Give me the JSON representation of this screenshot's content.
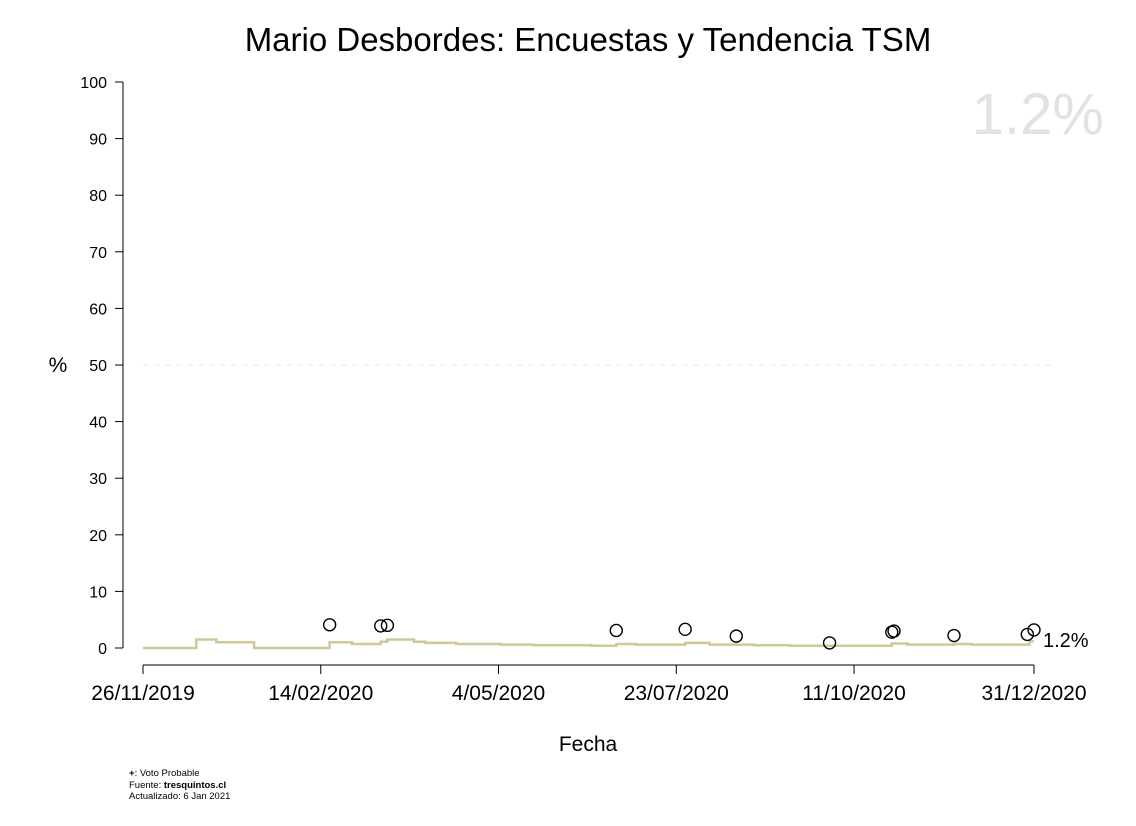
{
  "chart_data": {
    "type": "line",
    "title": "Mario Desbordes: Encuestas y Tendencia TSM",
    "xlabel": "Fecha",
    "ylabel": "%",
    "ylim": [
      0,
      100
    ],
    "yticks": [
      0,
      10,
      20,
      30,
      40,
      50,
      60,
      70,
      80,
      90,
      100
    ],
    "xlim": [
      "2019-11-26",
      "2020-12-31"
    ],
    "xticks": [
      {
        "date": "2019-11-26",
        "label": "26/11/2019"
      },
      {
        "date": "2020-02-14",
        "label": "14/02/2020"
      },
      {
        "date": "2020-05-04",
        "label": "4/05/2020"
      },
      {
        "date": "2020-07-23",
        "label": "23/07/2020"
      },
      {
        "date": "2020-10-11",
        "label": "11/10/2020"
      },
      {
        "date": "2020-12-31",
        "label": "31/12/2020"
      }
    ],
    "reference_line": {
      "y": 50,
      "style": "dashed",
      "color": "#e8e8e8"
    },
    "series": [
      {
        "type": "scatter",
        "marker": "open-circle",
        "color": "#000000",
        "points": [
          {
            "x": "2020-02-18",
            "y": 4.1
          },
          {
            "x": "2020-03-12",
            "y": 3.9
          },
          {
            "x": "2020-03-15",
            "y": 4.0
          },
          {
            "x": "2020-06-26",
            "y": 3.1
          },
          {
            "x": "2020-07-27",
            "y": 3.3
          },
          {
            "x": "2020-08-19",
            "y": 2.1
          },
          {
            "x": "2020-09-30",
            "y": 0.9
          },
          {
            "x": "2020-10-28",
            "y": 2.8
          },
          {
            "x": "2020-10-29",
            "y": 3.0
          },
          {
            "x": "2020-11-25",
            "y": 2.2
          },
          {
            "x": "2020-12-28",
            "y": 2.4
          },
          {
            "x": "2020-12-31",
            "y": 3.2
          }
        ]
      },
      {
        "type": "step",
        "color": "#cfc89a",
        "points": [
          {
            "x": "2019-11-26",
            "y": 0.0
          },
          {
            "x": "2019-12-20",
            "y": 1.5
          },
          {
            "x": "2019-12-29",
            "y": 1.0
          },
          {
            "x": "2020-01-15",
            "y": 0.0
          },
          {
            "x": "2020-02-18",
            "y": 1.0
          },
          {
            "x": "2020-02-28",
            "y": 0.7
          },
          {
            "x": "2020-03-12",
            "y": 1.1
          },
          {
            "x": "2020-03-15",
            "y": 1.5
          },
          {
            "x": "2020-03-27",
            "y": 1.1
          },
          {
            "x": "2020-04-01",
            "y": 0.9
          },
          {
            "x": "2020-04-15",
            "y": 0.7
          },
          {
            "x": "2020-05-05",
            "y": 0.6
          },
          {
            "x": "2020-05-20",
            "y": 0.5
          },
          {
            "x": "2020-06-15",
            "y": 0.4
          },
          {
            "x": "2020-06-26",
            "y": 0.7
          },
          {
            "x": "2020-07-05",
            "y": 0.6
          },
          {
            "x": "2020-07-27",
            "y": 0.9
          },
          {
            "x": "2020-08-07",
            "y": 0.6
          },
          {
            "x": "2020-08-27",
            "y": 0.5
          },
          {
            "x": "2020-09-12",
            "y": 0.4
          },
          {
            "x": "2020-10-28",
            "y": 0.8
          },
          {
            "x": "2020-11-04",
            "y": 0.6
          },
          {
            "x": "2020-11-25",
            "y": 0.7
          },
          {
            "x": "2020-12-03",
            "y": 0.6
          },
          {
            "x": "2020-12-29",
            "y": 1.2
          },
          {
            "x": "2020-12-31",
            "y": 1.2
          }
        ]
      }
    ],
    "watermark_value": "1.2%",
    "end_label": "1.2%"
  },
  "footer": {
    "line1_prefix": "+",
    "line1_rest": ": Voto Probable",
    "line2_prefix": "Fuente: ",
    "line2_source": "tresquintos.cl",
    "line3": "Actualizado: 6 Jan 2021"
  },
  "colors": {
    "trend": "#cfc89a",
    "points": "#000000",
    "watermark": "#e2e2e2"
  }
}
